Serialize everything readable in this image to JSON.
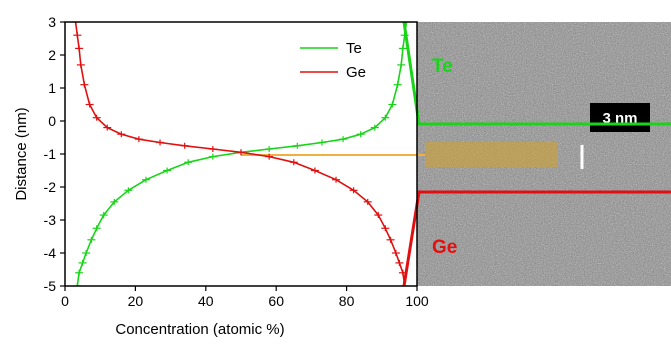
{
  "chart_data": {
    "type": "line",
    "title": "",
    "xlabel": "Concentration (atomic %)",
    "ylabel": "Distance (nm)",
    "xlim": [
      0,
      100
    ],
    "ylim": [
      -5,
      3
    ],
    "xticks": [
      0,
      20,
      40,
      60,
      80,
      100
    ],
    "yticks": [
      -5,
      -4,
      -3,
      -2,
      -1,
      0,
      1,
      2,
      3
    ],
    "grid": false,
    "legend": "top-right",
    "series": [
      {
        "name": "Te",
        "color": "#19d419",
        "points": [
          [
            3.5,
            -5.0
          ],
          [
            4.0,
            -4.6
          ],
          [
            5.0,
            -4.3
          ],
          [
            6.0,
            -4.0
          ],
          [
            7.5,
            -3.6
          ],
          [
            9.0,
            -3.25
          ],
          [
            11.0,
            -2.85
          ],
          [
            14.0,
            -2.45
          ],
          [
            18.0,
            -2.1
          ],
          [
            23.0,
            -1.78
          ],
          [
            29.0,
            -1.5
          ],
          [
            35.0,
            -1.25
          ],
          [
            42.0,
            -1.08
          ],
          [
            50.0,
            -0.95
          ],
          [
            58.0,
            -0.85
          ],
          [
            66.0,
            -0.75
          ],
          [
            73.0,
            -0.65
          ],
          [
            79.0,
            -0.55
          ],
          [
            84.0,
            -0.4
          ],
          [
            88.0,
            -0.2
          ],
          [
            91.0,
            0.1
          ],
          [
            93.0,
            0.5
          ],
          [
            94.5,
            1.1
          ],
          [
            95.5,
            1.7
          ],
          [
            96.0,
            2.2
          ],
          [
            96.5,
            2.6
          ],
          [
            97.0,
            3.0
          ]
        ]
      },
      {
        "name": "Ge",
        "color": "#e01010",
        "points": [
          [
            3.0,
            3.0
          ],
          [
            3.5,
            2.6
          ],
          [
            4.0,
            2.2
          ],
          [
            4.5,
            1.7
          ],
          [
            5.5,
            1.1
          ],
          [
            7.0,
            0.5
          ],
          [
            9.0,
            0.1
          ],
          [
            12.0,
            -0.2
          ],
          [
            16.0,
            -0.4
          ],
          [
            21.0,
            -0.55
          ],
          [
            27.0,
            -0.65
          ],
          [
            34.0,
            -0.75
          ],
          [
            42.0,
            -0.85
          ],
          [
            50.0,
            -0.95
          ],
          [
            58.0,
            -1.08
          ],
          [
            65.0,
            -1.25
          ],
          [
            71.0,
            -1.5
          ],
          [
            77.0,
            -1.78
          ],
          [
            82.0,
            -2.1
          ],
          [
            86.0,
            -2.45
          ],
          [
            89.0,
            -2.85
          ],
          [
            91.0,
            -3.25
          ],
          [
            92.5,
            -3.6
          ],
          [
            94.0,
            -4.0
          ],
          [
            95.0,
            -4.3
          ],
          [
            96.0,
            -4.6
          ],
          [
            96.5,
            -5.0
          ]
        ]
      }
    ]
  },
  "image_labels": {
    "top_element": "Te",
    "bottom_element": "Ge",
    "scale_bar": "3 nm"
  },
  "colors": {
    "te": "#19d419",
    "ge": "#e01010",
    "interface": "#f0b040",
    "interface_band": "#c8a040"
  }
}
